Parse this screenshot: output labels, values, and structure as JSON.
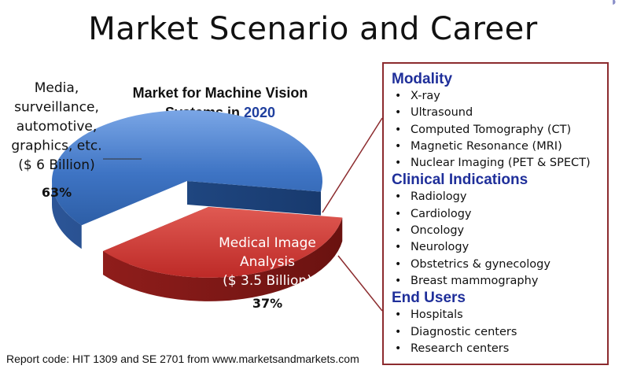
{
  "title": "Market Scenario and Career",
  "footer": "Report code: HIT 1309 and SE 2701 from www.marketsandmarkets.com",
  "chart_data": {
    "type": "pie",
    "title_line1": "Market for  Machine Vision",
    "title_line2_prefix": "Systems in ",
    "title_year": "2020",
    "slices": [
      {
        "label_lines": [
          "Media,",
          "surveillance,",
          "automotive,",
          "graphics, etc.",
          "($ 6 Billion)"
        ],
        "value": 6,
        "percent_label": "63%",
        "color": "#3e74c4"
      },
      {
        "label_lines": [
          "Medical Image",
          "Analysis",
          "($ 3.5 Billion)"
        ],
        "value": 3.5,
        "percent_label": "37%",
        "color": "#c8312d"
      }
    ]
  },
  "panel": {
    "sections": [
      {
        "heading": "Modality",
        "items": [
          "X-ray",
          "Ultrasound",
          "Computed Tomography (CT)",
          "Magnetic Resonance (MRI)",
          "Nuclear Imaging (PET & SPECT)"
        ]
      },
      {
        "heading": "Clinical Indications",
        "items": [
          "Radiology",
          "Cardiology",
          "Oncology",
          "Neurology",
          "Obstetrics & gynecology",
          "Breast mammography"
        ]
      },
      {
        "heading": "End Users",
        "items": [
          "Hospitals",
          "Diagnostic centers",
          "Research centers"
        ]
      }
    ]
  },
  "colors": {
    "blue_slice": "#3e74c4",
    "red_slice": "#c8312d",
    "panel_border": "#8c2b2e",
    "heading_blue": "#1f2f9a"
  }
}
